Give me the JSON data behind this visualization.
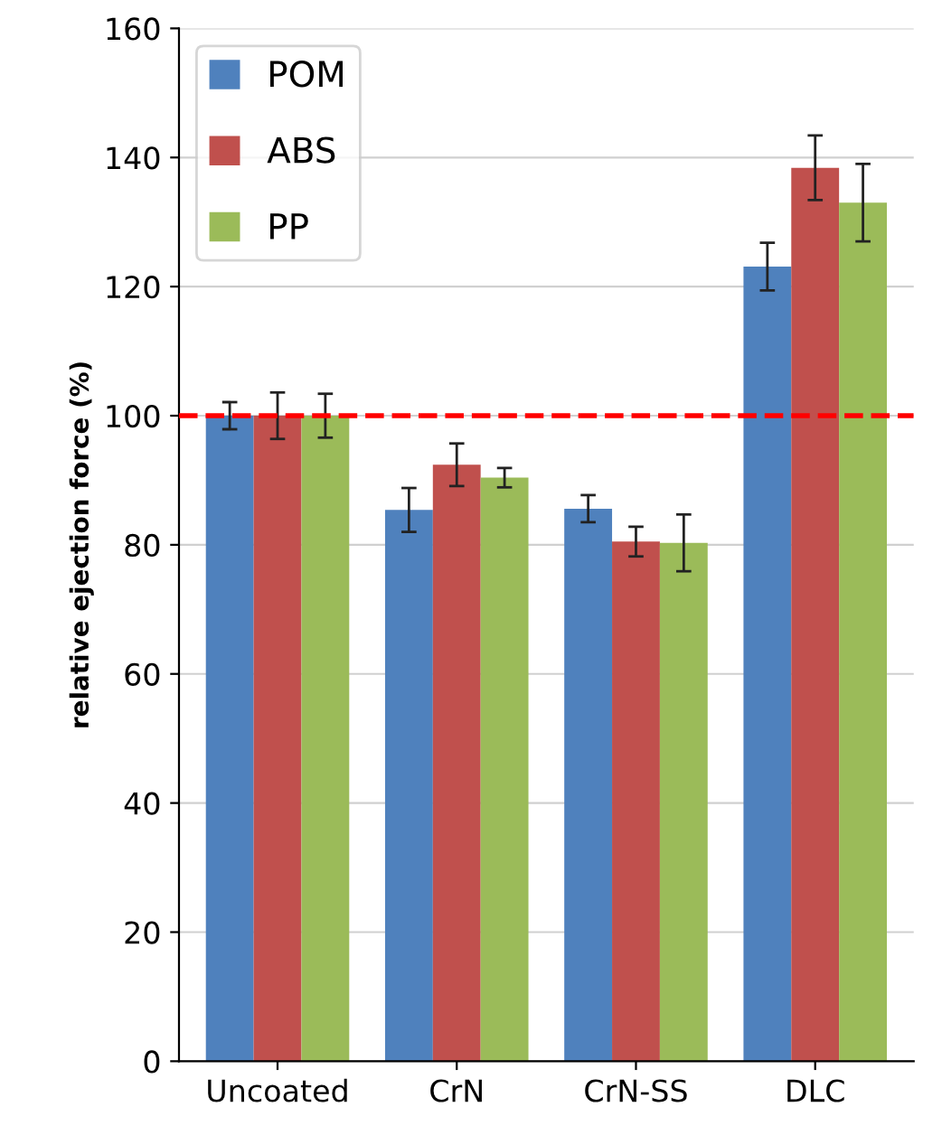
{
  "chart_data": {
    "type": "bar",
    "ylabel": "relative ejection force (%)",
    "categories": [
      "Uncoated",
      "CrN",
      "CrN-SS",
      "DLC"
    ],
    "series": [
      {
        "name": "POM",
        "color": "#4f81bd",
        "values": [
          100,
          85.4,
          85.6,
          123.1
        ],
        "errors": [
          2.1,
          3.4,
          2.1,
          3.7
        ]
      },
      {
        "name": "ABS",
        "color": "#c0504d",
        "values": [
          100,
          92.4,
          80.5,
          138.4
        ],
        "errors": [
          3.6,
          3.3,
          2.3,
          5.0
        ]
      },
      {
        "name": "PP",
        "color": "#9bbb59",
        "values": [
          100,
          90.4,
          80.3,
          133.0
        ],
        "errors": [
          3.4,
          1.5,
          4.4,
          6.0
        ]
      }
    ],
    "ylim": [
      0,
      160
    ],
    "yticks": [
      0,
      20,
      40,
      60,
      80,
      100,
      120,
      140,
      160
    ],
    "grid": "y",
    "legend": "top left",
    "ref_lines": [
      {
        "axis": "y",
        "value": 100,
        "label": null,
        "color": "#ff0000",
        "line_style": "dashed"
      }
    ]
  }
}
